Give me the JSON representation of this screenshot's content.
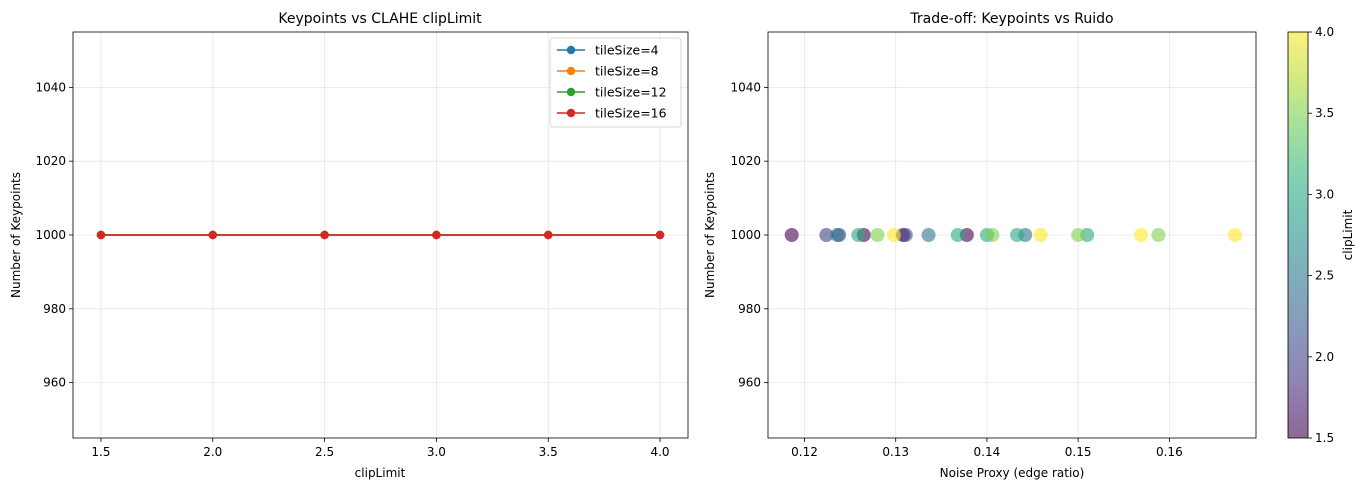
{
  "chart_data": [
    {
      "type": "line",
      "title": "Keypoints vs CLAHE clipLimit",
      "xlabel": "clipLimit",
      "ylabel": "Number of Keypoints",
      "xlim": [
        1.375,
        4.125
      ],
      "ylim": [
        945,
        1055
      ],
      "xticks": [
        1.5,
        2.0,
        2.5,
        3.0,
        3.5,
        4.0
      ],
      "xtick_labels": [
        "1.5",
        "2.0",
        "2.5",
        "3.0",
        "3.5",
        "4.0"
      ],
      "yticks": [
        960,
        980,
        1000,
        1020,
        1040
      ],
      "ytick_labels": [
        "960",
        "980",
        "1000",
        "1020",
        "1040"
      ],
      "grid": true,
      "legend": "top-right",
      "x": [
        1.5,
        2.0,
        2.5,
        3.0,
        3.5,
        4.0
      ],
      "series": [
        {
          "name": "tileSize=4",
          "color": "#1f77b4",
          "values": [
            1000,
            1000,
            1000,
            1000,
            1000,
            1000
          ]
        },
        {
          "name": "tileSize=8",
          "color": "#ff7f0e",
          "values": [
            1000,
            1000,
            1000,
            1000,
            1000,
            1000
          ]
        },
        {
          "name": "tileSize=12",
          "color": "#2ca02c",
          "values": [
            1000,
            1000,
            1000,
            1000,
            1000,
            1000
          ]
        },
        {
          "name": "tileSize=16",
          "color": "#d62728",
          "values": [
            1000,
            1000,
            1000,
            1000,
            1000,
            1000
          ]
        }
      ]
    },
    {
      "type": "scatter",
      "title": "Trade-off: Keypoints vs Ruido",
      "xlabel": "Noise Proxy (edge ratio)",
      "ylabel": "Number of Keypoints",
      "xlim": [
        0.116,
        0.1695
      ],
      "ylim": [
        945,
        1055
      ],
      "xticks": [
        0.12,
        0.13,
        0.14,
        0.15,
        0.16
      ],
      "xtick_labels": [
        "0.12",
        "0.13",
        "0.14",
        "0.15",
        "0.16"
      ],
      "yticks": [
        960,
        980,
        1000,
        1020,
        1040
      ],
      "ytick_labels": [
        "960",
        "980",
        "1000",
        "1020",
        "1040"
      ],
      "grid": true,
      "colormap": "viridis",
      "colorbar": {
        "label": "clipLimit",
        "range": [
          1.5,
          4.0
        ],
        "ticks": [
          1.5,
          2.0,
          2.5,
          3.0,
          3.5,
          4.0
        ],
        "tick_labels": [
          "1.5",
          "2.0",
          "2.5",
          "3.0",
          "3.5",
          "4.0"
        ]
      },
      "points": [
        {
          "x": 0.1186,
          "y": 1000,
          "c": 1.5
        },
        {
          "x": 0.1265,
          "y": 1000,
          "c": 1.5
        },
        {
          "x": 0.1308,
          "y": 1000,
          "c": 1.5
        },
        {
          "x": 0.1378,
          "y": 1000,
          "c": 1.5
        },
        {
          "x": 0.1224,
          "y": 1000,
          "c": 2.0
        },
        {
          "x": 0.1238,
          "y": 1000,
          "c": 2.0
        },
        {
          "x": 0.1311,
          "y": 1000,
          "c": 2.0
        },
        {
          "x": 0.1236,
          "y": 1000,
          "c": 2.5
        },
        {
          "x": 0.1336,
          "y": 1000,
          "c": 2.5
        },
        {
          "x": 0.1442,
          "y": 1000,
          "c": 2.5
        },
        {
          "x": 0.1259,
          "y": 1000,
          "c": 3.0
        },
        {
          "x": 0.1368,
          "y": 1000,
          "c": 3.0
        },
        {
          "x": 0.14,
          "y": 1000,
          "c": 3.0
        },
        {
          "x": 0.1433,
          "y": 1000,
          "c": 3.0
        },
        {
          "x": 0.151,
          "y": 1000,
          "c": 3.0
        },
        {
          "x": 0.128,
          "y": 1000,
          "c": 3.5
        },
        {
          "x": 0.1406,
          "y": 1000,
          "c": 3.5
        },
        {
          "x": 0.15,
          "y": 1000,
          "c": 3.5
        },
        {
          "x": 0.1588,
          "y": 1000,
          "c": 3.5
        },
        {
          "x": 0.1298,
          "y": 1000,
          "c": 4.0
        },
        {
          "x": 0.1459,
          "y": 1000,
          "c": 4.0
        },
        {
          "x": 0.1569,
          "y": 1000,
          "c": 4.0
        },
        {
          "x": 0.1672,
          "y": 1000,
          "c": 4.0
        }
      ]
    }
  ]
}
